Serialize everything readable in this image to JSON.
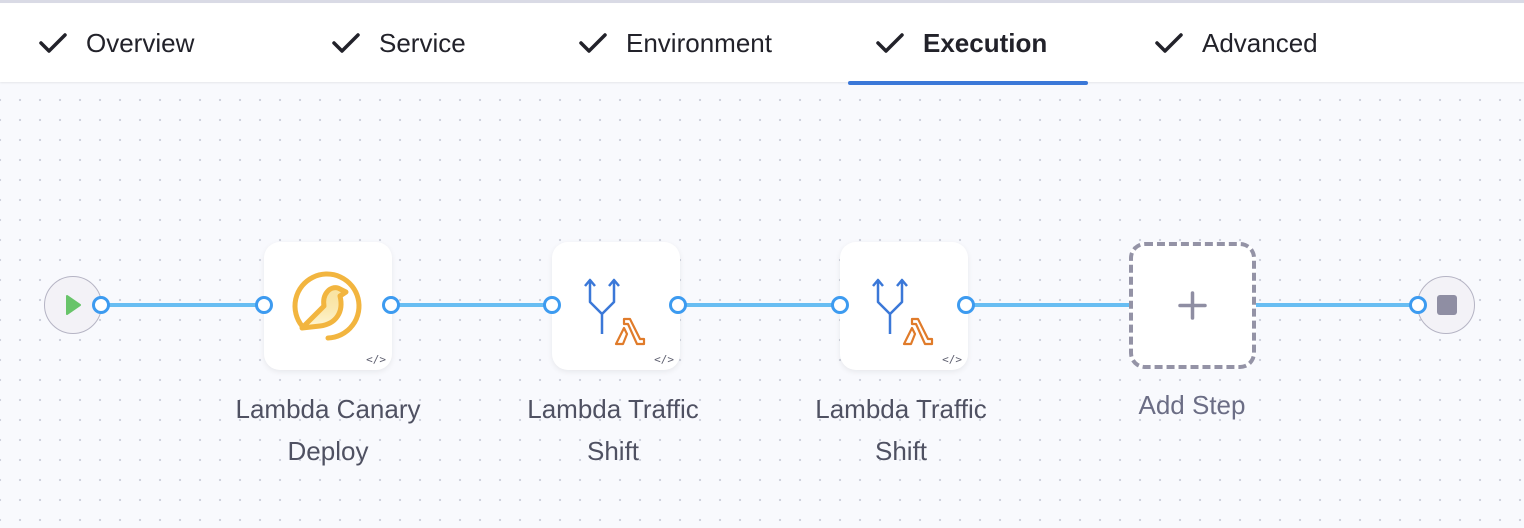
{
  "tabs": [
    {
      "label": "Overview",
      "completed": true,
      "active": false
    },
    {
      "label": "Service",
      "completed": true,
      "active": false
    },
    {
      "label": "Environment",
      "completed": true,
      "active": false
    },
    {
      "label": "Execution",
      "completed": true,
      "active": true
    },
    {
      "label": "Advanced",
      "completed": true,
      "active": false
    }
  ],
  "pipeline": {
    "steps": [
      {
        "line1": "Lambda Canary",
        "line2": "Deploy",
        "icon": "canary-bird-icon"
      },
      {
        "line1": "Lambda Traffic",
        "line2": "Shift",
        "icon": "traffic-shift-lambda-icon"
      },
      {
        "line1": "Lambda Traffic",
        "line2": "Shift",
        "icon": "traffic-shift-lambda-icon"
      }
    ],
    "add_step_label": "Add Step",
    "code_badge": "</>"
  },
  "colors": {
    "accent": "#3b78d8",
    "edge": "#68bdf2",
    "port": "#3d9bf0",
    "canary": "#f2b53f",
    "lambda": "#e07b2a"
  }
}
